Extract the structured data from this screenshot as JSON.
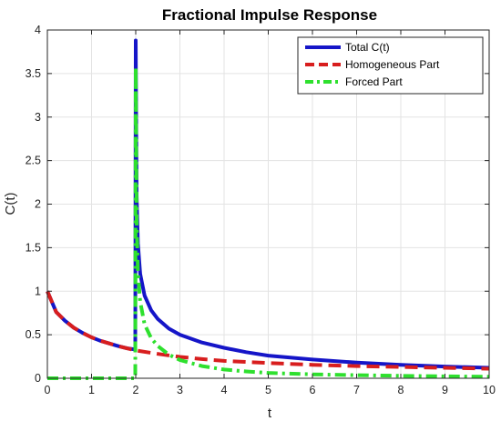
{
  "chart_data": {
    "type": "line",
    "title": "Fractional Impulse Response",
    "xlabel": "t",
    "ylabel": "C(t)",
    "xlim": [
      0,
      10
    ],
    "ylim": [
      0,
      4
    ],
    "xticks": [
      0,
      1,
      2,
      3,
      4,
      5,
      6,
      7,
      8,
      9,
      10
    ],
    "yticks": [
      0,
      0.5,
      1,
      1.5,
      2,
      2.5,
      3,
      3.5,
      4
    ],
    "grid": true,
    "legend_position": "top-right",
    "series": [
      {
        "name": "Total C(t)",
        "color": "#1515c8",
        "style": "solid",
        "x": [
          0,
          0.2,
          0.4,
          0.6,
          0.8,
          1.0,
          1.2,
          1.4,
          1.6,
          1.8,
          1.99,
          2.0,
          2.02,
          2.05,
          2.1,
          2.2,
          2.35,
          2.5,
          2.75,
          3.0,
          3.5,
          4.0,
          4.5,
          5.0,
          6.0,
          7.0,
          8.0,
          9.0,
          10.0
        ],
        "y": [
          1.0,
          0.76,
          0.66,
          0.58,
          0.52,
          0.47,
          0.43,
          0.4,
          0.37,
          0.345,
          0.33,
          3.88,
          2.1,
          1.55,
          1.2,
          0.95,
          0.78,
          0.68,
          0.57,
          0.5,
          0.41,
          0.35,
          0.3,
          0.26,
          0.215,
          0.18,
          0.155,
          0.135,
          0.12
        ]
      },
      {
        "name": "Homogeneous Part",
        "color": "#d81e1e",
        "style": "dashed",
        "x": [
          0,
          0.2,
          0.4,
          0.6,
          0.8,
          1.0,
          1.2,
          1.4,
          1.6,
          1.8,
          2.0,
          2.5,
          3.0,
          3.5,
          4.0,
          5.0,
          6.0,
          7.0,
          8.0,
          9.0,
          10.0
        ],
        "y": [
          1.0,
          0.76,
          0.66,
          0.58,
          0.52,
          0.47,
          0.43,
          0.4,
          0.37,
          0.345,
          0.32,
          0.28,
          0.245,
          0.22,
          0.2,
          0.175,
          0.155,
          0.14,
          0.13,
          0.12,
          0.11
        ]
      },
      {
        "name": "Forced Part",
        "color": "#2ee02e",
        "style": "dashdot",
        "x": [
          0,
          1.99,
          2.0,
          2.02,
          2.05,
          2.1,
          2.2,
          2.35,
          2.5,
          2.75,
          3.0,
          3.5,
          4.0,
          4.5,
          5.0,
          6.0,
          7.0,
          8.0,
          9.0,
          10.0
        ],
        "y": [
          0.0,
          0.0,
          3.57,
          1.8,
          1.22,
          0.88,
          0.62,
          0.46,
          0.37,
          0.27,
          0.21,
          0.14,
          0.1,
          0.078,
          0.062,
          0.045,
          0.035,
          0.028,
          0.022,
          0.018
        ]
      }
    ]
  }
}
